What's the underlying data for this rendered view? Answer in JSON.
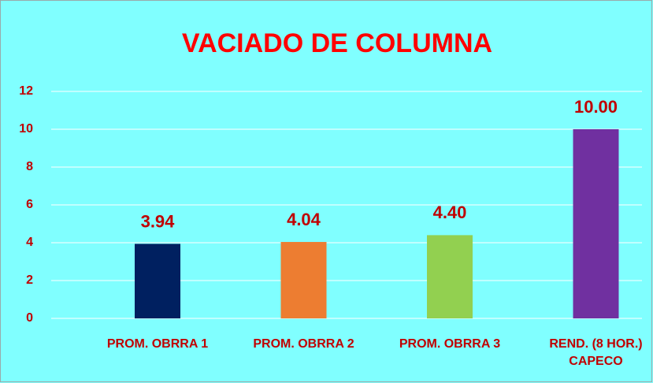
{
  "chart_data": {
    "type": "bar",
    "title": "VACIADO DE COLUMNA",
    "categories": [
      "PROM. OBRRA 1",
      "PROM. OBRRA 2",
      "PROM. OBRRA 3",
      "REND. (8 HOR.) CAPECO"
    ],
    "values": [
      3.94,
      4.04,
      4.4,
      10
    ],
    "value_labels": [
      "3.94",
      "4.04",
      "4.40",
      "10.00"
    ],
    "colors": [
      "#002060",
      "#ED7D31",
      "#92D050",
      "#7030A0"
    ],
    "ylim": [
      0,
      12
    ],
    "yticks": [
      0,
      2,
      4,
      6,
      8,
      10,
      12
    ],
    "grid": true
  }
}
